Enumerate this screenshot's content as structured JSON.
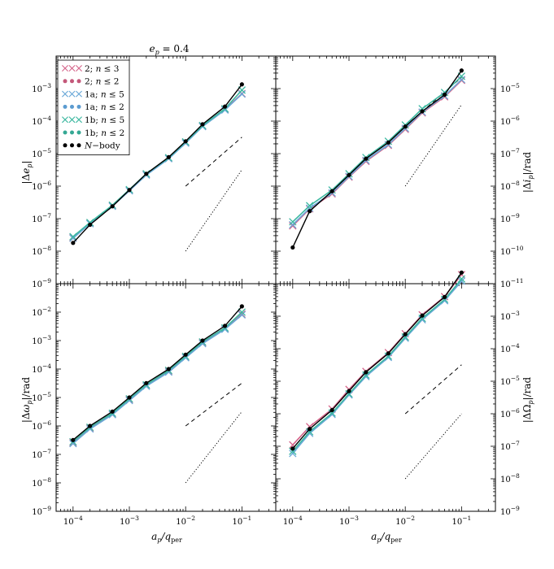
{
  "title": "e_p = 0.4",
  "title_parts": {
    "main": "e",
    "sub": "p",
    "rest": " = 0.4"
  },
  "xlabel": "a_p/q_per",
  "xlabel_parts": {
    "main": "a",
    "sub": "p",
    "slash": "/q",
    "sub2": "per"
  },
  "x_ticks": [
    {
      "value": 0.0001,
      "mant": "10",
      "exp": "−4"
    },
    {
      "value": 0.001,
      "mant": "10",
      "exp": "−3"
    },
    {
      "value": 0.01,
      "mant": "10",
      "exp": "−2"
    },
    {
      "value": 0.1,
      "mant": "10",
      "exp": "−1"
    }
  ],
  "colors": {
    "s2n3": "#d5648a",
    "s2n2": "#c4587a",
    "s1an5": "#6aa8d8",
    "s1an2": "#5b9bd0",
    "s1bn5": "#3cb8a0",
    "s1bn2": "#35a894",
    "nbody": "#000000"
  },
  "legend": [
    {
      "key": "s2n3",
      "marker": "x",
      "label": "2; n ≤ 3"
    },
    {
      "key": "s2n2",
      "marker": "o",
      "label": "2; n ≤ 2"
    },
    {
      "key": "s1an5",
      "marker": "x",
      "label": "1a; n ≤ 5"
    },
    {
      "key": "s1an2",
      "marker": "o",
      "label": "1a; n ≤ 2"
    },
    {
      "key": "s1bn5",
      "marker": "x",
      "label": "1b; n ≤ 5"
    },
    {
      "key": "s1bn2",
      "marker": "o",
      "label": "1b; n ≤ 2"
    },
    {
      "key": "nbody",
      "marker": "o",
      "label": "N−body"
    }
  ],
  "chart_data": [
    {
      "type": "line",
      "panel": "top-left",
      "ylabel": "|Δe_p|",
      "yaxis_side": "left",
      "xscale": "log",
      "yscale": "log",
      "xlim": [
        5e-05,
        0.4
      ],
      "ylim": [
        1e-09,
        0.01
      ],
      "y_ticks": [
        {
          "value": 0.001,
          "exp": "−3"
        },
        {
          "value": 0.0001,
          "exp": "−4"
        },
        {
          "value": 1e-05,
          "exp": "−5"
        },
        {
          "value": 1e-06,
          "exp": "−6"
        },
        {
          "value": 1e-07,
          "exp": "−7"
        },
        {
          "value": 1e-08,
          "exp": "−8"
        },
        {
          "value": 1e-09,
          "exp": "−9"
        }
      ],
      "x": [
        0.0001,
        0.0002,
        0.0005,
        0.001,
        0.002,
        0.005,
        0.01,
        0.02,
        0.05,
        0.1
      ],
      "series": [
        {
          "key": "s2n3",
          "values": [
            2.6e-08,
            7.2e-08,
            2.5e-07,
            7.4e-07,
            2.3e-06,
            7.2e-06,
            2.2e-05,
            7e-05,
            0.00023,
            0.0007
          ]
        },
        {
          "key": "s1an5",
          "values": [
            2.5e-08,
            7e-08,
            2.4e-07,
            7.2e-07,
            2.2e-06,
            7e-06,
            2.1e-05,
            6.8e-05,
            0.00022,
            0.00068
          ]
        },
        {
          "key": "s1bn5",
          "values": [
            2.8e-08,
            7.6e-08,
            2.6e-07,
            7.8e-07,
            2.4e-06,
            7.5e-06,
            2.3e-05,
            7.3e-05,
            0.00024,
            0.0009
          ]
        },
        {
          "key": "nbody",
          "values": [
            1.8e-08,
            6.5e-08,
            2.4e-07,
            7.6e-07,
            2.4e-06,
            7.8e-06,
            2.4e-05,
            8e-05,
            0.00028,
            0.00135
          ]
        }
      ],
      "reference_lines": [
        {
          "style": "dashed",
          "x": [
            0.01,
            0.1
          ],
          "y": [
            1e-06,
            3.2e-05
          ]
        },
        {
          "style": "dotted",
          "x": [
            0.01,
            0.1
          ],
          "y": [
            1e-08,
            3.2e-06
          ]
        }
      ]
    },
    {
      "type": "line",
      "panel": "top-right",
      "ylabel": "|Δi_p|/rad",
      "yaxis_side": "right",
      "xscale": "log",
      "yscale": "log",
      "xlim": [
        5e-05,
        0.4
      ],
      "ylim": [
        1e-11,
        0.0001
      ],
      "y_ticks": [
        {
          "value": 1e-05,
          "exp": "−5"
        },
        {
          "value": 1e-06,
          "exp": "−6"
        },
        {
          "value": 1e-07,
          "exp": "−7"
        },
        {
          "value": 1e-08,
          "exp": "−8"
        },
        {
          "value": 1e-09,
          "exp": "−9"
        },
        {
          "value": 1e-10,
          "exp": "−10"
        },
        {
          "value": 1e-11,
          "exp": "−11"
        }
      ],
      "x": [
        0.0001,
        0.0002,
        0.0005,
        0.001,
        0.002,
        0.005,
        0.01,
        0.02,
        0.05,
        0.1
      ],
      "series": [
        {
          "key": "s2n3",
          "values": [
            6e-10,
            2e-09,
            5.8e-09,
            1.9e-08,
            5.8e-08,
            1.8e-07,
            5.6e-07,
            1.8e-06,
            5.6e-06,
            1.8e-05
          ]
        },
        {
          "key": "s1an5",
          "values": [
            6.5e-10,
            2.1e-09,
            6.2e-09,
            2e-08,
            6.2e-08,
            1.9e-07,
            6e-07,
            1.9e-06,
            6e-06,
            1.9e-05
          ]
        },
        {
          "key": "s1bn5",
          "values": [
            8e-10,
            2.5e-09,
            7.6e-09,
            2.4e-08,
            7.6e-08,
            2.4e-07,
            7.6e-07,
            2.4e-06,
            7.6e-06,
            2.4e-05
          ]
        },
        {
          "key": "nbody",
          "values": [
            1.3e-10,
            1.7e-09,
            7e-09,
            2.2e-08,
            7e-08,
            2.2e-07,
            6.8e-07,
            2e-06,
            6.5e-06,
            3.6e-05
          ]
        }
      ],
      "reference_lines": [
        {
          "style": "dashed",
          "x": [
            0.01,
            0.1
          ],
          "y": [
            7e-07,
            2.2e-05
          ]
        },
        {
          "style": "dotted",
          "x": [
            0.01,
            0.1
          ],
          "y": [
            1e-08,
            3.2e-06
          ]
        }
      ]
    },
    {
      "type": "line",
      "panel": "bottom-left",
      "ylabel": "|Δω_p|/rad",
      "yaxis_side": "left",
      "xscale": "log",
      "yscale": "log",
      "xlim": [
        5e-05,
        0.4
      ],
      "ylim": [
        1e-09,
        0.1
      ],
      "y_ticks": [
        {
          "value": 0.01,
          "exp": "−2"
        },
        {
          "value": 0.001,
          "exp": "−3"
        },
        {
          "value": 0.0001,
          "exp": "−4"
        },
        {
          "value": 1e-05,
          "exp": "−5"
        },
        {
          "value": 1e-06,
          "exp": "−6"
        },
        {
          "value": 1e-07,
          "exp": "−7"
        },
        {
          "value": 1e-08,
          "exp": "−8"
        },
        {
          "value": 1e-09,
          "exp": "−9"
        }
      ],
      "x": [
        0.0001,
        0.0002,
        0.0005,
        0.001,
        0.002,
        0.005,
        0.01,
        0.02,
        0.05,
        0.1
      ],
      "series": [
        {
          "key": "s2n3",
          "values": [
            2.6e-07,
            8.4e-07,
            2.6e-06,
            8.4e-06,
            2.6e-05,
            8.4e-05,
            0.00026,
            0.00084,
            0.0026,
            0.0085
          ]
        },
        {
          "key": "s1an5",
          "values": [
            2.4e-07,
            7.8e-07,
            2.5e-06,
            7.8e-06,
            2.5e-05,
            7.8e-05,
            0.00025,
            0.00078,
            0.0025,
            0.008
          ]
        },
        {
          "key": "s1bn5",
          "values": [
            2.8e-07,
            9e-07,
            2.8e-06,
            9e-06,
            2.8e-05,
            9e-05,
            0.00028,
            0.0009,
            0.0028,
            0.01
          ]
        },
        {
          "key": "nbody",
          "values": [
            3.2e-07,
            1e-06,
            3.2e-06,
            1e-05,
            3.2e-05,
            0.0001,
            0.00032,
            0.001,
            0.0033,
            0.016
          ]
        }
      ],
      "reference_lines": [
        {
          "style": "dashed",
          "x": [
            0.01,
            0.1
          ],
          "y": [
            1e-06,
            3.2e-05
          ]
        },
        {
          "style": "dotted",
          "x": [
            0.01,
            0.1
          ],
          "y": [
            1e-08,
            3.2e-06
          ]
        }
      ]
    },
    {
      "type": "line",
      "panel": "bottom-right",
      "ylabel": "|ΔΩ_p|/rad",
      "yaxis_side": "right",
      "xscale": "log",
      "yscale": "log",
      "xlim": [
        5e-05,
        0.4
      ],
      "ylim": [
        1e-09,
        0.01
      ],
      "y_ticks": [
        {
          "value": 0.001,
          "exp": "−3"
        },
        {
          "value": 0.0001,
          "exp": "−4"
        },
        {
          "value": 1e-05,
          "exp": "−5"
        },
        {
          "value": 1e-06,
          "exp": "−6"
        },
        {
          "value": 1e-07,
          "exp": "−7"
        },
        {
          "value": 1e-08,
          "exp": "−8"
        },
        {
          "value": 1e-09,
          "exp": "−9"
        }
      ],
      "x": [
        0.0001,
        0.0002,
        0.0005,
        0.001,
        0.002,
        0.005,
        0.01,
        0.02,
        0.05,
        0.1
      ],
      "series": [
        {
          "key": "s2n3",
          "values": [
            1.1e-07,
            4e-07,
            1.4e-06,
            5.6e-06,
            2e-05,
            7.6e-05,
            0.00029,
            0.0011,
            0.004,
            0.019
          ]
        },
        {
          "key": "s1an5",
          "values": [
            6e-08,
            2.5e-07,
            9.5e-07,
            3.8e-06,
            1.4e-05,
            5.4e-05,
            0.00021,
            0.00078,
            0.003,
            0.012
          ]
        },
        {
          "key": "s1bn5",
          "values": [
            7e-08,
            2.8e-07,
            1.05e-06,
            4.1e-06,
            1.55e-05,
            5.9e-05,
            0.00023,
            0.00086,
            0.0033,
            0.014
          ]
        },
        {
          "key": "nbody",
          "values": [
            8.5e-08,
            3.4e-07,
            1.3e-06,
            5e-06,
            1.9e-05,
            7.2e-05,
            0.00028,
            0.00105,
            0.0039,
            0.022
          ]
        }
      ],
      "reference_lines": [
        {
          "style": "dashed",
          "x": [
            0.01,
            0.1
          ],
          "y": [
            1e-06,
            3.2e-05
          ]
        },
        {
          "style": "dotted",
          "x": [
            0.01,
            0.1
          ],
          "y": [
            1e-08,
            1e-06
          ]
        }
      ]
    }
  ]
}
